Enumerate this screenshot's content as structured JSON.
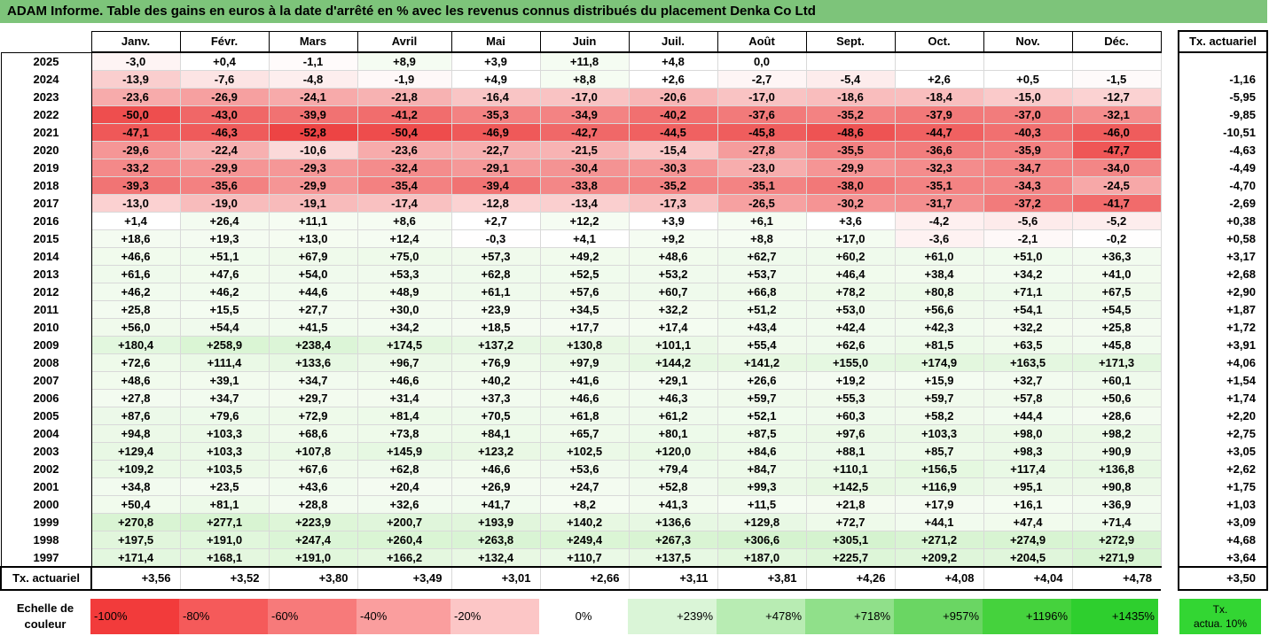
{
  "title": "ADAM Informe. Table des gains en euros à la date d'arrêté en % avec les revenus connus distribués du placement Denka Co Ltd",
  "months": [
    "Janv.",
    "Févr.",
    "Mars",
    "Avril",
    "Mai",
    "Juin",
    "Juil.",
    "Août",
    "Sept.",
    "Oct.",
    "Nov.",
    "Déc."
  ],
  "ta_header": "Tx. actuariel",
  "rows": [
    {
      "year": "2025",
      "vals": [
        "-3,0",
        "+0,4",
        "-1,1",
        "+8,9",
        "+3,9",
        "+11,8",
        "+4,8",
        "0,0",
        "",
        "",
        "",
        ""
      ],
      "ta": ""
    },
    {
      "year": "2024",
      "vals": [
        "-13,9",
        "-7,6",
        "-4,8",
        "-1,9",
        "+4,9",
        "+8,8",
        "+2,6",
        "-2,7",
        "-5,4",
        "+2,6",
        "+0,5",
        "-1,5"
      ],
      "ta": "-1,16"
    },
    {
      "year": "2023",
      "vals": [
        "-23,6",
        "-26,9",
        "-24,1",
        "-21,8",
        "-16,4",
        "-17,0",
        "-20,6",
        "-17,0",
        "-18,6",
        "-18,4",
        "-15,0",
        "-12,7"
      ],
      "ta": "-5,95"
    },
    {
      "year": "2022",
      "vals": [
        "-50,0",
        "-43,0",
        "-39,9",
        "-41,2",
        "-35,3",
        "-34,9",
        "-40,2",
        "-37,6",
        "-35,2",
        "-37,9",
        "-37,0",
        "-32,1"
      ],
      "ta": "-9,85"
    },
    {
      "year": "2021",
      "vals": [
        "-47,1",
        "-46,3",
        "-52,8",
        "-50,4",
        "-46,9",
        "-42,7",
        "-44,5",
        "-45,8",
        "-48,6",
        "-44,7",
        "-40,3",
        "-46,0"
      ],
      "ta": "-10,51"
    },
    {
      "year": "2020",
      "vals": [
        "-29,6",
        "-22,4",
        "-10,6",
        "-23,6",
        "-22,7",
        "-21,5",
        "-15,4",
        "-27,8",
        "-35,5",
        "-36,6",
        "-35,9",
        "-47,7"
      ],
      "ta": "-4,63"
    },
    {
      "year": "2019",
      "vals": [
        "-33,2",
        "-29,9",
        "-29,3",
        "-32,4",
        "-29,1",
        "-30,4",
        "-30,3",
        "-23,0",
        "-29,9",
        "-32,3",
        "-34,7",
        "-34,0"
      ],
      "ta": "-4,49"
    },
    {
      "year": "2018",
      "vals": [
        "-39,3",
        "-35,6",
        "-29,9",
        "-35,4",
        "-39,4",
        "-33,8",
        "-35,2",
        "-35,1",
        "-38,0",
        "-35,1",
        "-34,3",
        "-24,5"
      ],
      "ta": "-4,70"
    },
    {
      "year": "2017",
      "vals": [
        "-13,0",
        "-19,0",
        "-19,1",
        "-17,4",
        "-12,8",
        "-13,4",
        "-17,3",
        "-26,5",
        "-30,2",
        "-31,7",
        "-37,2",
        "-41,7"
      ],
      "ta": "-2,69"
    },
    {
      "year": "2016",
      "vals": [
        "+1,4",
        "+26,4",
        "+11,1",
        "+8,6",
        "+2,7",
        "+12,2",
        "+3,9",
        "+6,1",
        "+3,6",
        "-4,2",
        "-5,6",
        "-5,2"
      ],
      "ta": "+0,38"
    },
    {
      "year": "2015",
      "vals": [
        "+18,6",
        "+19,3",
        "+13,0",
        "+12,4",
        "-0,3",
        "+4,1",
        "+9,2",
        "+8,8",
        "+17,0",
        "-3,6",
        "-2,1",
        "-0,2"
      ],
      "ta": "+0,58"
    },
    {
      "year": "2014",
      "vals": [
        "+46,6",
        "+51,1",
        "+67,9",
        "+75,0",
        "+57,3",
        "+49,2",
        "+48,6",
        "+62,7",
        "+60,2",
        "+61,0",
        "+51,0",
        "+36,3"
      ],
      "ta": "+3,17"
    },
    {
      "year": "2013",
      "vals": [
        "+61,6",
        "+47,6",
        "+54,0",
        "+53,3",
        "+62,8",
        "+52,5",
        "+53,2",
        "+53,7",
        "+46,4",
        "+38,4",
        "+34,2",
        "+41,0"
      ],
      "ta": "+2,68"
    },
    {
      "year": "2012",
      "vals": [
        "+46,2",
        "+46,2",
        "+44,6",
        "+48,9",
        "+61,1",
        "+57,6",
        "+60,7",
        "+66,8",
        "+78,2",
        "+80,8",
        "+71,1",
        "+67,5"
      ],
      "ta": "+2,90"
    },
    {
      "year": "2011",
      "vals": [
        "+25,8",
        "+15,5",
        "+27,7",
        "+30,0",
        "+23,9",
        "+34,5",
        "+32,2",
        "+51,2",
        "+53,0",
        "+56,6",
        "+54,1",
        "+54,5"
      ],
      "ta": "+1,87"
    },
    {
      "year": "2010",
      "vals": [
        "+56,0",
        "+54,4",
        "+41,5",
        "+34,2",
        "+18,5",
        "+17,7",
        "+17,4",
        "+43,4",
        "+42,4",
        "+42,3",
        "+32,2",
        "+25,8"
      ],
      "ta": "+1,72"
    },
    {
      "year": "2009",
      "vals": [
        "+180,4",
        "+258,9",
        "+238,4",
        "+174,5",
        "+137,2",
        "+130,8",
        "+101,1",
        "+55,4",
        "+62,6",
        "+81,5",
        "+63,5",
        "+45,8"
      ],
      "ta": "+3,91"
    },
    {
      "year": "2008",
      "vals": [
        "+72,6",
        "+111,4",
        "+133,6",
        "+96,7",
        "+76,9",
        "+97,9",
        "+144,2",
        "+141,2",
        "+155,0",
        "+174,9",
        "+163,5",
        "+171,3"
      ],
      "ta": "+4,06"
    },
    {
      "year": "2007",
      "vals": [
        "+48,6",
        "+39,1",
        "+34,7",
        "+46,6",
        "+40,2",
        "+41,6",
        "+29,1",
        "+26,6",
        "+19,2",
        "+15,9",
        "+32,7",
        "+60,1"
      ],
      "ta": "+1,54"
    },
    {
      "year": "2006",
      "vals": [
        "+27,8",
        "+34,7",
        "+29,7",
        "+31,4",
        "+37,3",
        "+46,6",
        "+46,3",
        "+59,7",
        "+55,3",
        "+59,7",
        "+57,8",
        "+50,6"
      ],
      "ta": "+1,74"
    },
    {
      "year": "2005",
      "vals": [
        "+87,6",
        "+79,6",
        "+72,9",
        "+81,4",
        "+70,5",
        "+61,8",
        "+61,2",
        "+52,1",
        "+60,3",
        "+58,2",
        "+44,4",
        "+28,6"
      ],
      "ta": "+2,20"
    },
    {
      "year": "2004",
      "vals": [
        "+94,8",
        "+103,3",
        "+68,6",
        "+73,8",
        "+84,1",
        "+65,7",
        "+80,1",
        "+87,5",
        "+97,6",
        "+103,3",
        "+98,0",
        "+98,2"
      ],
      "ta": "+2,75"
    },
    {
      "year": "2003",
      "vals": [
        "+129,4",
        "+103,3",
        "+107,8",
        "+145,9",
        "+123,2",
        "+102,5",
        "+120,0",
        "+84,6",
        "+88,1",
        "+85,7",
        "+98,3",
        "+90,9"
      ],
      "ta": "+3,05"
    },
    {
      "year": "2002",
      "vals": [
        "+109,2",
        "+103,5",
        "+67,6",
        "+62,8",
        "+46,6",
        "+53,6",
        "+79,4",
        "+84,7",
        "+110,1",
        "+156,5",
        "+117,4",
        "+136,8"
      ],
      "ta": "+2,62"
    },
    {
      "year": "2001",
      "vals": [
        "+34,8",
        "+23,5",
        "+43,6",
        "+20,4",
        "+26,9",
        "+24,7",
        "+52,8",
        "+99,3",
        "+142,5",
        "+116,9",
        "+95,1",
        "+90,8"
      ],
      "ta": "+1,75"
    },
    {
      "year": "2000",
      "vals": [
        "+50,4",
        "+81,1",
        "+28,8",
        "+32,6",
        "+41,7",
        "+8,2",
        "+41,3",
        "+11,5",
        "+21,8",
        "+17,9",
        "+16,1",
        "+36,9"
      ],
      "ta": "+1,03"
    },
    {
      "year": "1999",
      "vals": [
        "+270,8",
        "+277,1",
        "+223,9",
        "+200,7",
        "+193,9",
        "+140,2",
        "+136,6",
        "+129,8",
        "+72,7",
        "+44,1",
        "+47,4",
        "+71,4"
      ],
      "ta": "+3,09"
    },
    {
      "year": "1998",
      "vals": [
        "+197,5",
        "+191,0",
        "+247,4",
        "+260,4",
        "+263,8",
        "+249,4",
        "+267,3",
        "+306,6",
        "+305,1",
        "+271,2",
        "+274,9",
        "+272,9"
      ],
      "ta": "+4,68"
    },
    {
      "year": "1997",
      "vals": [
        "+171,4",
        "+168,1",
        "+191,0",
        "+166,2",
        "+132,4",
        "+110,7",
        "+137,5",
        "+187,0",
        "+225,7",
        "+209,2",
        "+204,5",
        "+271,9"
      ],
      "ta": "+3,64"
    }
  ],
  "footer": {
    "label": "Tx. actuariel",
    "vals": [
      "+3,56",
      "+3,52",
      "+3,80",
      "+3,49",
      "+3,01",
      "+2,66",
      "+3,11",
      "+3,81",
      "+4,26",
      "+4,08",
      "+4,04",
      "+4,78"
    ],
    "ta": "+3,50"
  },
  "scale": {
    "label_line1": "Echelle de",
    "label_line2": "couleur",
    "items": [
      {
        "label": "-100%",
        "color": "#f23b3b",
        "kind": "neg"
      },
      {
        "label": "-80%",
        "color": "#f55a5a",
        "kind": "neg"
      },
      {
        "label": "-60%",
        "color": "#f77a7a",
        "kind": "neg"
      },
      {
        "label": "-40%",
        "color": "#fa9e9e",
        "kind": "neg"
      },
      {
        "label": "-20%",
        "color": "#fcc6c6",
        "kind": "neg"
      },
      {
        "label": "0%",
        "color": "#ffffff",
        "kind": "zero"
      },
      {
        "label": "+239%",
        "color": "#daf5d7",
        "kind": "pos"
      },
      {
        "label": "+478%",
        "color": "#b8ecb3",
        "kind": "pos"
      },
      {
        "label": "+718%",
        "color": "#90e08a",
        "kind": "pos"
      },
      {
        "label": "+957%",
        "color": "#6ad663",
        "kind": "pos"
      },
      {
        "label": "+1196%",
        "color": "#45d23d",
        "kind": "pos"
      },
      {
        "label": "+1435%",
        "color": "#2ecf2e",
        "kind": "pos"
      }
    ],
    "ta_line1": "Tx.",
    "ta_line2": "actua. 10%"
  }
}
